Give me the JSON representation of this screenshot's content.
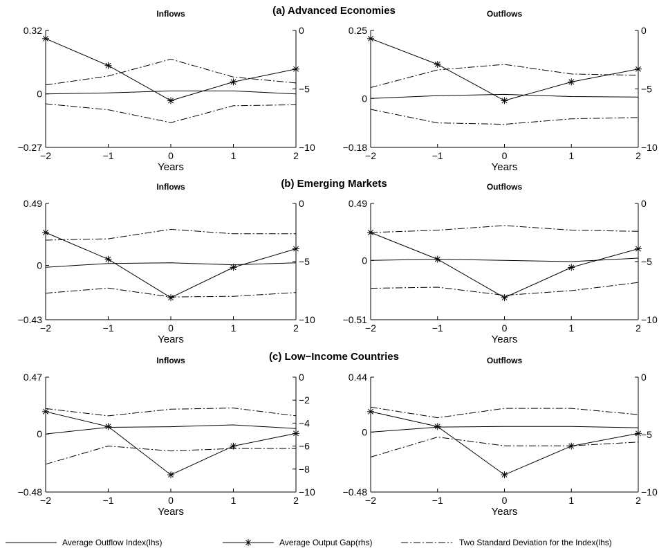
{
  "legend": {
    "series_a": "Average Outflow Index(lhs)",
    "series_b": "Average Output Gap(rhs)",
    "series_c": "Two Standard Deviation for the Index(lhs)"
  },
  "rows": [
    {
      "title": "(a) Advanced Economies"
    },
    {
      "title": "(b) Emerging Markets"
    },
    {
      "title": "(c) Low−Income Countries"
    }
  ],
  "chart_data": [
    {
      "type": "line",
      "panel": "Advanced Economies Inflows",
      "title": "Inflows",
      "xlabel": "Years",
      "x": [
        -2,
        -1,
        0,
        1,
        2
      ],
      "xlim": [
        -2,
        2
      ],
      "xticks": [
        "−2",
        "−1",
        "0",
        "1",
        "2"
      ],
      "ylim_left": [
        -0.27,
        0.32
      ],
      "yticks_left": [
        "0.32",
        "0",
        "−0.27"
      ],
      "ylim_right": [
        -10,
        0
      ],
      "yticks_right": [
        "0",
        "−5",
        "−10"
      ],
      "series": [
        {
          "name": "Average Outflow Index(lhs)",
          "axis": "left",
          "values": [
            0.0,
            0.005,
            0.015,
            0.015,
            0.0
          ]
        },
        {
          "name": "Average Output Gap(rhs)",
          "axis": "right",
          "values": [
            -0.7,
            -3.0,
            -6.0,
            -4.4,
            -3.3
          ]
        },
        {
          "name": "Two Standard Deviation for the Index(lhs)",
          "axis": "left",
          "values": [
            0.045,
            0.09,
            0.175,
            0.085,
            0.055
          ]
        },
        {
          "name": "Two Standard Deviation for the Index(lhs)",
          "axis": "left",
          "values": [
            -0.05,
            -0.08,
            -0.145,
            -0.06,
            -0.055
          ]
        }
      ]
    },
    {
      "type": "line",
      "panel": "Advanced Economies Outflows",
      "title": "Outflows",
      "xlabel": "Years",
      "x": [
        -2,
        -1,
        0,
        1,
        2
      ],
      "xlim": [
        -2,
        2
      ],
      "xticks": [
        "−2",
        "−1",
        "0",
        "1",
        "2"
      ],
      "ylim_left": [
        -0.18,
        0.25
      ],
      "yticks_left": [
        "0.25",
        "0",
        "−0.18"
      ],
      "ylim_right": [
        -10,
        0
      ],
      "yticks_right": [
        "0",
        "−5",
        "−10"
      ],
      "series": [
        {
          "name": "Average Outflow Index(lhs)",
          "axis": "left",
          "values": [
            0.0,
            0.01,
            0.015,
            0.007,
            0.005
          ]
        },
        {
          "name": "Average Output Gap(rhs)",
          "axis": "right",
          "values": [
            -0.7,
            -2.9,
            -6.0,
            -4.4,
            -3.3
          ]
        },
        {
          "name": "Two Standard Deviation for the Index(lhs)",
          "axis": "left",
          "values": [
            0.04,
            0.105,
            0.125,
            0.09,
            0.085
          ]
        },
        {
          "name": "Two Standard Deviation for the Index(lhs)",
          "axis": "left",
          "values": [
            -0.04,
            -0.09,
            -0.095,
            -0.075,
            -0.07
          ]
        }
      ]
    },
    {
      "type": "line",
      "panel": "Emerging Markets Inflows",
      "title": "Inflows",
      "xlabel": "Years",
      "x": [
        -2,
        -1,
        0,
        1,
        2
      ],
      "xlim": [
        -2,
        2
      ],
      "xticks": [
        "−2",
        "−1",
        "0",
        "1",
        "2"
      ],
      "ylim_left": [
        -0.43,
        0.49
      ],
      "yticks_left": [
        "0.49",
        "0",
        "−0.43"
      ],
      "ylim_right": [
        -10,
        0
      ],
      "yticks_right": [
        "0",
        "−5",
        "−10"
      ],
      "series": [
        {
          "name": "Average Outflow Index(lhs)",
          "axis": "left",
          "values": [
            -0.015,
            0.015,
            0.02,
            0.005,
            0.02
          ]
        },
        {
          "name": "Average Output Gap(rhs)",
          "axis": "right",
          "values": [
            -2.5,
            -4.8,
            -8.1,
            -5.5,
            -3.9
          ]
        },
        {
          "name": "Two Standard Deviation for the Index(lhs)",
          "axis": "left",
          "values": [
            0.2,
            0.21,
            0.285,
            0.25,
            0.25
          ]
        },
        {
          "name": "Two Standard Deviation for the Index(lhs)",
          "axis": "left",
          "values": [
            -0.22,
            -0.18,
            -0.25,
            -0.245,
            -0.215
          ]
        }
      ]
    },
    {
      "type": "line",
      "panel": "Emerging Markets Outflows",
      "title": "Outflows",
      "xlabel": "Years",
      "x": [
        -2,
        -1,
        0,
        1,
        2
      ],
      "xlim": [
        -2,
        2
      ],
      "xticks": [
        "−2",
        "−1",
        "0",
        "1",
        "2"
      ],
      "ylim_left": [
        -0.51,
        0.49
      ],
      "yticks_left": [
        "0.49",
        "0",
        "−0.51"
      ],
      "ylim_right": [
        -10,
        0
      ],
      "yticks_right": [
        "0",
        "−5",
        "−10"
      ],
      "series": [
        {
          "name": "Average Outflow Index(lhs)",
          "axis": "left",
          "values": [
            0.0,
            0.01,
            0.0,
            -0.01,
            0.02
          ]
        },
        {
          "name": "Average Output Gap(rhs)",
          "axis": "right",
          "values": [
            -2.5,
            -4.8,
            -8.1,
            -5.5,
            -3.9
          ]
        },
        {
          "name": "Two Standard Deviation for the Index(lhs)",
          "axis": "left",
          "values": [
            0.24,
            0.26,
            0.3,
            0.26,
            0.25
          ]
        },
        {
          "name": "Two Standard Deviation for the Index(lhs)",
          "axis": "left",
          "values": [
            -0.24,
            -0.23,
            -0.3,
            -0.26,
            -0.19
          ]
        }
      ]
    },
    {
      "type": "line",
      "panel": "Low-Income Countries Inflows",
      "title": "Inflows",
      "xlabel": "Years",
      "x": [
        -2,
        -1,
        0,
        1,
        2
      ],
      "xlim": [
        -2,
        2
      ],
      "xticks": [
        "−2",
        "−1",
        "0",
        "1",
        "2"
      ],
      "ylim_left": [
        -0.48,
        0.47
      ],
      "yticks_left": [
        "0.47",
        "0",
        "−0.48"
      ],
      "ylim_right": [
        -10,
        0
      ],
      "yticks_right": [
        "0",
        "−2",
        "−4",
        "−6",
        "−8",
        "−10"
      ],
      "series": [
        {
          "name": "Average Outflow Index(lhs)",
          "axis": "left",
          "values": [
            0.0,
            0.055,
            0.06,
            0.075,
            0.045
          ]
        },
        {
          "name": "Average Output Gap(rhs)",
          "axis": "right",
          "values": [
            -3.0,
            -4.3,
            -8.5,
            -6.0,
            -4.9
          ]
        },
        {
          "name": "Two Standard Deviation for the Index(lhs)",
          "axis": "left",
          "values": [
            0.21,
            0.15,
            0.205,
            0.215,
            0.15
          ]
        },
        {
          "name": "Two Standard Deviation for the Index(lhs)",
          "axis": "left",
          "values": [
            -0.25,
            -0.1,
            -0.14,
            -0.12,
            -0.12
          ]
        }
      ]
    },
    {
      "type": "line",
      "panel": "Low-Income Countries Outflows",
      "title": "Outflows",
      "xlabel": "Years",
      "x": [
        -2,
        -1,
        0,
        1,
        2
      ],
      "xlim": [
        -2,
        2
      ],
      "xticks": [
        "−2",
        "−1",
        "0",
        "1",
        "2"
      ],
      "ylim_left": [
        -0.48,
        0.44
      ],
      "yticks_left": [
        "0.44",
        "0",
        "−0.48"
      ],
      "ylim_right": [
        -10,
        0
      ],
      "yticks_right": [
        "0",
        "−5",
        "−10"
      ],
      "series": [
        {
          "name": "Average Outflow Index(lhs)",
          "axis": "left",
          "values": [
            0.0,
            0.04,
            0.045,
            0.045,
            0.035
          ]
        },
        {
          "name": "Average Output Gap(rhs)",
          "axis": "right",
          "values": [
            -3.0,
            -4.3,
            -8.5,
            -6.0,
            -4.9
          ]
        },
        {
          "name": "Two Standard Deviation for the Index(lhs)",
          "axis": "left",
          "values": [
            0.2,
            0.115,
            0.19,
            0.19,
            0.14
          ]
        },
        {
          "name": "Two Standard Deviation for the Index(lhs)",
          "axis": "left",
          "values": [
            -0.2,
            -0.04,
            -0.11,
            -0.11,
            -0.08
          ]
        }
      ]
    }
  ]
}
